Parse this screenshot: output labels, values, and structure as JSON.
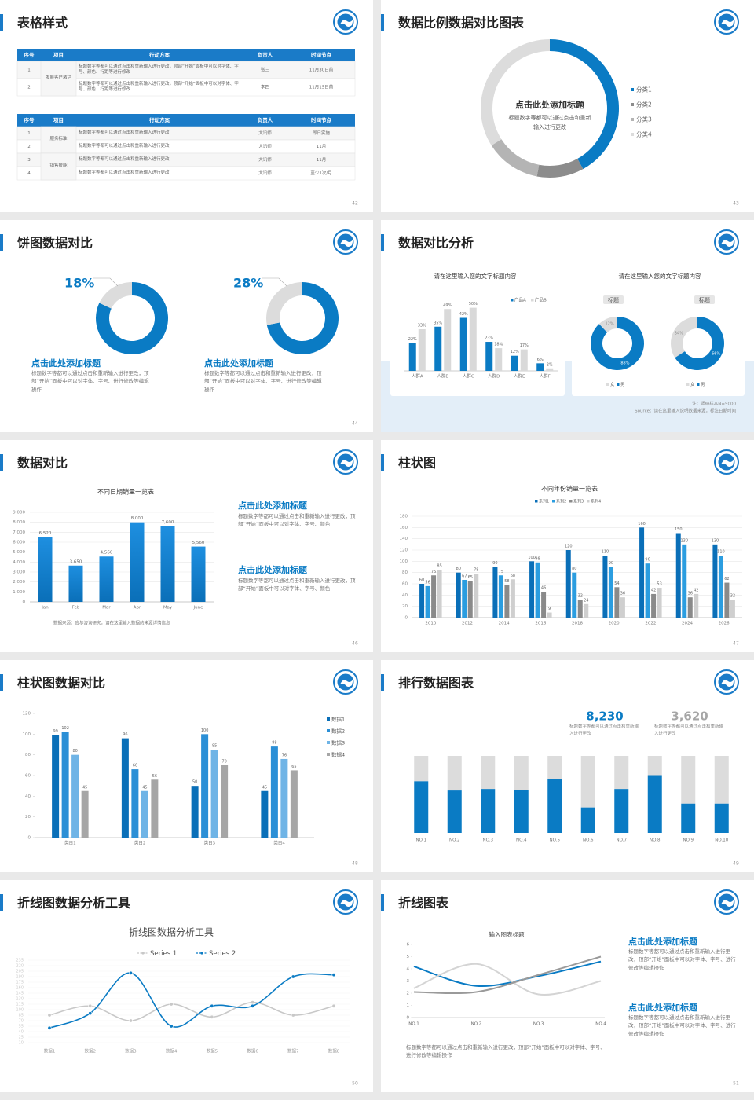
{
  "slides": [
    {
      "title": "表格样式",
      "page": "42",
      "tables": [
        {
          "headers": [
            "序号",
            "项目",
            "行动方案",
            "负责人",
            "时间节点"
          ],
          "groups": [
            {
              "project": "发展客户激活",
              "rows": [
                [
                  "1",
                  "标题数字等都可以通过点击和重新输入进行更改，顶部“开始”面板中可以对字体、字号、颜色、行距等进行修改",
                  "张三",
                  "11月30日前"
                ],
                [
                  "2",
                  "标题数字等都可以通过点击和重新输入进行更改，顶部“开始”面板中可以对字体、字号、颜色、行距等进行修改",
                  "李四",
                  "11月15日前"
                ]
              ]
            }
          ]
        },
        {
          "headers": [
            "序号",
            "项目",
            "行动方案",
            "负责人",
            "时间节点"
          ],
          "groups": [
            {
              "project": "服务标准",
              "rows": [
                [
                  "1",
                  "标题数字等都可以通过点击和重新输入进行更改",
                  "大讯师",
                  "即日实施"
                ],
                [
                  "2",
                  "标题数字等都可以通过点击和重新输入进行更改",
                  "大讯师",
                  "11月"
                ]
              ]
            },
            {
              "project": "销售技能",
              "rows": [
                [
                  "3",
                  "标题数字等都可以通过点击和重新输入进行更改",
                  "大讯师",
                  "11月"
                ],
                [
                  "4",
                  "标题数字等都可以通过点击和重新输入进行更改",
                  "大讯师",
                  "至少1次/月"
                ]
              ]
            }
          ]
        }
      ]
    },
    {
      "title": "数据比例数据对比图表",
      "page": "43",
      "chart": {
        "type": "donut",
        "title": "点击此处添加标题",
        "subtitle": "标题数字等都可以通过点击和重新输入进行更改",
        "categories": [
          "分类1",
          "分类2",
          "分类3",
          "分类4"
        ],
        "values": [
          42,
          11,
          13,
          34
        ],
        "colors": [
          "#0a7bc4",
          "#8c8c8c",
          "#b4b4b4",
          "#dcdcdc"
        ]
      }
    },
    {
      "title": "饼图数据对比",
      "page": "44",
      "charts": [
        {
          "type": "donut",
          "value": 18,
          "value_label": "18%",
          "color": "#dcdcdc",
          "rest_color": "#0a7bc4",
          "heading": "点击此处添加标题",
          "text": "标题数字等都可以通过点击和重新输入进行更改，顶部“开始”面板中可以对字体、字号、进行修改等编辑操作"
        },
        {
          "type": "donut",
          "value": 28,
          "value_label": "28%",
          "color": "#dcdcdc",
          "rest_color": "#0a7bc4",
          "heading": "点击此处添加标题",
          "text": "标题数字等都可以通过点击和重新输入进行更改，顶部“开始”面板中可以对字体、字号、进行修改等编辑操作"
        }
      ]
    },
    {
      "title": "数据对比分析",
      "page": "45",
      "charts": [
        {
          "type": "bar",
          "title": "请在这里输入您的文字标题内容",
          "categories": [
            "人群A",
            "人群B",
            "人群C",
            "人群D",
            "人群E",
            "人群F"
          ],
          "series": [
            {
              "name": "产品A",
              "color": "#0a7bc4",
              "values": [
                22,
                35,
                42,
                23,
                12,
                6
              ],
              "value_labels": [
                "22%",
                "35%",
                "42%",
                "23%",
                "12%",
                "6%"
              ]
            },
            {
              "name": "产品B",
              "color": "#d9d9d9",
              "values": [
                33,
                49,
                50,
                18,
                17,
                2
              ],
              "value_labels": [
                "33%",
                "49%",
                "50%",
                "18%",
                "17%",
                "2%"
              ]
            }
          ]
        },
        {
          "type": "donut",
          "title": "请在这里输入您的文字标题内容",
          "categories": [
            "女",
            "男"
          ],
          "colors": [
            "#dcdcdc",
            "#0a7bc4"
          ],
          "donuts": [
            {
              "label": "标题",
              "values": [
                12,
                88
              ],
              "value_labels": [
                "12%",
                "88%"
              ]
            },
            {
              "label": "标题",
              "values": [
                34,
                66
              ],
              "value_labels": [
                "34%",
                "66%"
              ]
            }
          ]
        }
      ],
      "notes": [
        "注：调研样本N=5000",
        "Source：请在这里输入说明数据来源，标注日期时间"
      ]
    },
    {
      "title": "数据对比",
      "page": "46",
      "chart": {
        "type": "bar",
        "title": "不同日期销量一览表",
        "categories": [
          "Jan",
          "Feb",
          "Mar",
          "Apr",
          "May",
          "June"
        ],
        "series": [
          {
            "color": "#0a7bc4",
            "values": [
              6520,
              3650,
              4560,
              8000,
              7600,
              5560
            ],
            "value_labels": [
              "6,520",
              "3,650",
              "4,560",
              "8,000",
              "7,600",
              "5,560"
            ]
          }
        ],
        "ylim": [
          0,
          9000
        ],
        "yticks": [
          0,
          {
            "value": 1000,
            "label": "1,000"
          },
          {
            "value": 2000,
            "label": "2,000"
          },
          {
            "value": 3000,
            "label": "3,000"
          },
          {
            "value": 4000,
            "label": "4,000"
          },
          {
            "value": 5000,
            "label": "5,000"
          },
          {
            "value": 6000,
            "label": "6,000"
          },
          {
            "value": 7000,
            "label": "7,000"
          },
          {
            "value": 8000,
            "label": "8,000"
          },
          {
            "value": 9000,
            "label": "9,000"
          }
        ],
        "grid": true,
        "source": "数据来源：应尔咨询研究，请在这里输入数据的来源详情信息"
      },
      "items": [
        {
          "heading": "点击此处添加标题",
          "text": "标题数字等都可以通过点击和重新输入进行更改，顶部“开始”面板中可以对字体、字号、颜色"
        },
        {
          "heading": "点击此处添加标题",
          "text": "标题数字等都可以通过点击和重新输入进行更改，顶部“开始”面板中可以对字体、字号、颜色"
        }
      ]
    },
    {
      "title": "柱状图",
      "page": "47",
      "chart": {
        "type": "bar",
        "title": "不同年份销量一览表",
        "categories": [
          "2010",
          "2012",
          "2014",
          "2016",
          "2018",
          "2020",
          "2022",
          "2024",
          "2026"
        ],
        "series": [
          {
            "name": "系列1",
            "color": "#0a6fb8",
            "values": [
              60,
              80,
              90,
              100,
              120,
              110,
              160,
              150,
              130
            ]
          },
          {
            "name": "系列2",
            "color": "#2b9de0",
            "values": [
              56,
              67,
              75,
              98,
              80,
              90,
              96,
              130,
              110
            ]
          },
          {
            "name": "系列3",
            "color": "#8a8a8a",
            "values": [
              75,
              65,
              58,
              46,
              32,
              54,
              42,
              36,
              62
            ]
          },
          {
            "name": "系列4",
            "color": "#cfcfcf",
            "values": [
              85,
              78,
              68,
              9,
              24,
              36,
              53,
              42,
              32
            ]
          }
        ],
        "ylim": [
          0,
          180
        ],
        "yticks": [
          0,
          20,
          40,
          60,
          80,
          100,
          120,
          140,
          160,
          180
        ],
        "grid": true
      }
    },
    {
      "title": "柱状图数据对比",
      "page": "48",
      "chart": {
        "type": "bar",
        "categories": [
          "类目1",
          "类目2",
          "类目3",
          "类目4"
        ],
        "series": [
          {
            "name": "数据1",
            "color": "#0a6fb8",
            "values": [
              99,
              96,
              50,
              45
            ]
          },
          {
            "name": "数据2",
            "color": "#2b8fd6",
            "values": [
              102,
              66,
              100,
              88
            ]
          },
          {
            "name": "数据3",
            "color": "#6fb4e6",
            "values": [
              80,
              45,
              85,
              76
            ]
          },
          {
            "name": "数据4",
            "color": "#a6a6a6",
            "values": [
              45,
              56,
              70,
              65
            ]
          }
        ],
        "ylim": [
          0,
          120
        ],
        "yticks": [
          0,
          20,
          40,
          60,
          80,
          100,
          120
        ],
        "grid": false
      }
    },
    {
      "title": "排行数据图表",
      "page": "49",
      "stats": [
        {
          "value": "8,230",
          "text": "标题数字等都可以通过点击和重新输入进行更改",
          "color": "#0a7bc4"
        },
        {
          "value": "3,620",
          "text": "标题数字等都可以通过点击和重新输入进行更改",
          "color": "#a6a6a6"
        }
      ],
      "chart": {
        "type": "bar",
        "categories": [
          "NO.1",
          "NO.2",
          "NO.3",
          "NO.4",
          "NO.5",
          "NO.6",
          "NO.7",
          "NO.8",
          "NO.9",
          "NO.10"
        ],
        "values": [
          67,
          55,
          57,
          56,
          70,
          33,
          57,
          75,
          38,
          38
        ],
        "ylim": [
          0,
          100
        ],
        "color": "#0a7bc4",
        "rest_color": "#dcdcdc"
      }
    },
    {
      "title": "折线图数据分析工具",
      "page": "50",
      "chart": {
        "type": "line",
        "title": "折线图数据分析工具",
        "categories": [
          "数据1",
          "数据2",
          "数据3",
          "数据4",
          "数据5",
          "数据6",
          "数据7",
          "数据8"
        ],
        "series": [
          {
            "name": "Series 1",
            "color": "#c8c8c8",
            "values": [
              85,
              110,
              70,
              115,
              80,
              120,
              85,
              110
            ]
          },
          {
            "name": "Series 2",
            "color": "#0a7bc4",
            "values": [
              50,
              90,
              200,
              55,
              110,
              110,
              190,
              195
            ]
          }
        ],
        "ylim": [
          10,
          235
        ],
        "yticks": [
          10,
          25,
          40,
          55,
          70,
          85,
          100,
          115,
          130,
          145,
          160,
          175,
          190,
          205,
          220,
          235
        ],
        "grid": true
      }
    },
    {
      "title": "折线图表",
      "page": "51",
      "chart": {
        "type": "line",
        "title": "输入图表标题",
        "categories": [
          "NO.1",
          "NO.2",
          "NO.3",
          "NO.4"
        ],
        "series": [
          {
            "color": "#0a7bc4",
            "values": [
              4.2,
              2.6,
              3.4,
              4.6
            ]
          },
          {
            "color": "#d4d4d4",
            "values": [
              2.4,
              4.4,
              1.9,
              3.0
            ]
          },
          {
            "color": "#9a9a9a",
            "values": [
              2.1,
              2.1,
              3.5,
              5.0
            ]
          }
        ],
        "ylim": [
          0,
          6
        ],
        "yticks": [
          0,
          1,
          2,
          3,
          4,
          5,
          6
        ],
        "grid": false
      },
      "items": [
        {
          "heading": "点击此处添加标题",
          "text": "标题数字等都可以通过点击和重新输入进行更改，顶部“开始”面板中可以对字体、字号、进行修改等编辑操作"
        },
        {
          "heading": "点击此处添加标题",
          "text": "标题数字等都可以通过点击和重新输入进行更改，顶部“开始”面板中可以对字体、字号、进行修改等编辑操作"
        }
      ],
      "note": "标题数字等都可以通过点击和重新输入进行更改，顶部“开始”面板中可以对字体、字号、进行修改等编辑操作"
    }
  ]
}
